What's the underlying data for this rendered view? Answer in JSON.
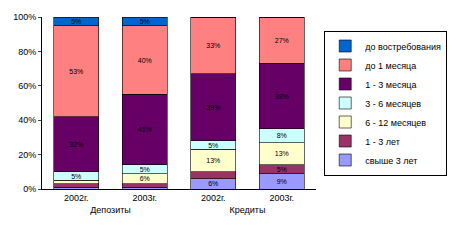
{
  "chart_data": {
    "type": "bar",
    "stacked": true,
    "grid": false,
    "legend": "right",
    "data_labels": true,
    "categories": [
      "2002г.",
      "2003г.",
      "2002г.",
      "2003г."
    ],
    "groups": [
      "Депозиты",
      "Депозиты",
      "Кредиты",
      "Кредиты"
    ],
    "ylim": [
      0,
      100
    ],
    "yticks": [
      {
        "value": 0,
        "label": "0%"
      },
      {
        "value": 20,
        "label": "20%"
      },
      {
        "value": 40,
        "label": "40%"
      },
      {
        "value": 60,
        "label": "60%"
      },
      {
        "value": 80,
        "label": "80%"
      },
      {
        "value": 100,
        "label": "100%"
      }
    ],
    "series": [
      {
        "name": "свыше 3 лет",
        "color": "#9999ff",
        "values": [
          1,
          1,
          6,
          9
        ],
        "value_labels": [
          null,
          null,
          "6%",
          "9%"
        ]
      },
      {
        "name": "1 - 3 лет",
        "color": "#993366",
        "values": [
          2,
          2,
          4,
          5
        ],
        "value_labels": [
          null,
          null,
          null,
          "5%"
        ]
      },
      {
        "name": "6 - 12 месяцев",
        "color": "#ffffcc",
        "values": [
          2,
          6,
          13,
          13
        ],
        "value_labels": [
          null,
          "6%",
          "13%",
          "13%"
        ]
      },
      {
        "name": "3 - 6 месяцев",
        "color": "#ccffff",
        "values": [
          5,
          5,
          5,
          8
        ],
        "value_labels": [
          "5%",
          "5%",
          "5%",
          "8%"
        ]
      },
      {
        "name": "1 - 3 месяца",
        "color": "#660066",
        "values": [
          32,
          41,
          39,
          38
        ],
        "value_labels": [
          "32%",
          "41%",
          "39%",
          "38%"
        ]
      },
      {
        "name": "до 1 месяца",
        "color": "#ff8080",
        "values": [
          53,
          40,
          33,
          27
        ],
        "value_labels": [
          "53%",
          "40%",
          "33%",
          "27%"
        ]
      },
      {
        "name": "до востребования",
        "color": "#0066cc",
        "values": [
          5,
          5,
          0,
          0
        ],
        "value_labels": [
          "5%",
          "5%",
          null,
          null
        ]
      }
    ]
  }
}
